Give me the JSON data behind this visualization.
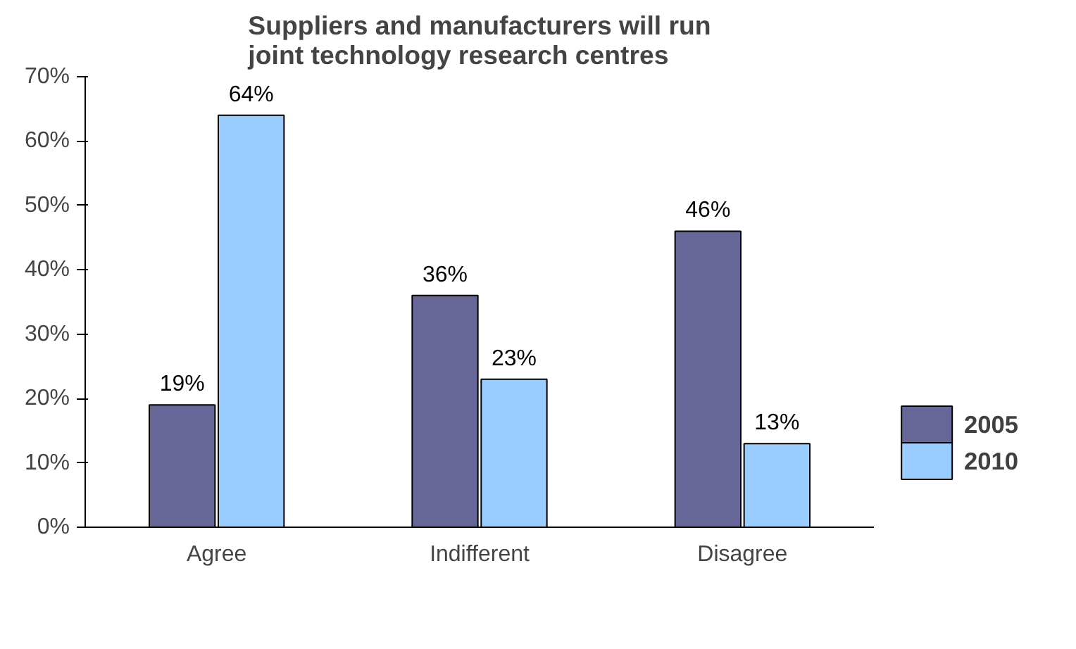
{
  "chart_data": {
    "type": "bar",
    "title": "Suppliers and manufacturers will run joint technology research centres",
    "categories": [
      "Agree",
      "Indifferent",
      "Disagree"
    ],
    "series": [
      {
        "name": "2005",
        "color": "#666699",
        "values": [
          19,
          36,
          46
        ],
        "value_labels": [
          "19%",
          "36%",
          "46%"
        ]
      },
      {
        "name": "2010",
        "color": "#99ccff",
        "values": [
          64,
          23,
          13
        ],
        "value_labels": [
          "64%",
          "23%",
          "13%"
        ]
      }
    ],
    "ylim": [
      0,
      70
    ],
    "yticks": [
      {
        "value": 0,
        "label": "0%"
      },
      {
        "value": 10,
        "label": "10%"
      },
      {
        "value": 20,
        "label": "20%"
      },
      {
        "value": 30,
        "label": "30%"
      },
      {
        "value": 40,
        "label": "40%"
      },
      {
        "value": 50,
        "label": "50%"
      },
      {
        "value": 60,
        "label": "60%"
      },
      {
        "value": 70,
        "label": "70%"
      }
    ],
    "grid": false,
    "legend": "right"
  }
}
